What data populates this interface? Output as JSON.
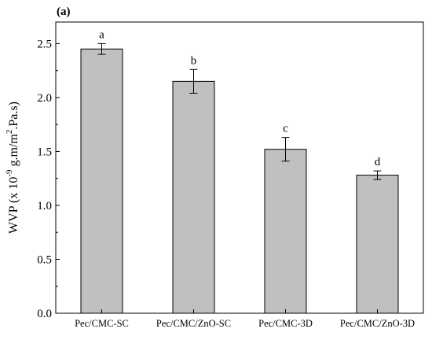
{
  "chart_data": {
    "type": "bar",
    "panel_label": "(a)",
    "title": "",
    "xlabel": "",
    "ylabel": "WVP (x 10",
    "ylabel_exponent": "-9",
    "ylabel_unit": " g.m/m",
    "ylabel_unit_exponent": "2",
    "ylabel_tail": ".Pa.s)",
    "ylim": [
      0,
      2.7
    ],
    "yticks": [
      "0.0",
      "0.5",
      "1.0",
      "1.5",
      "2.0",
      "2.5"
    ],
    "categories": [
      "Pec/CMC-SC",
      "Pec/CMC/ZnO-SC",
      "Pec/CMC-3D",
      "Pec/CMC/ZnO-3D"
    ],
    "values": [
      2.45,
      2.15,
      1.52,
      1.28
    ],
    "errors": [
      0.05,
      0.11,
      0.11,
      0.04
    ],
    "significance_letters": [
      "a",
      "b",
      "c",
      "d"
    ],
    "bar_color": "#c0c0c0",
    "grid": false,
    "legend": "none"
  }
}
